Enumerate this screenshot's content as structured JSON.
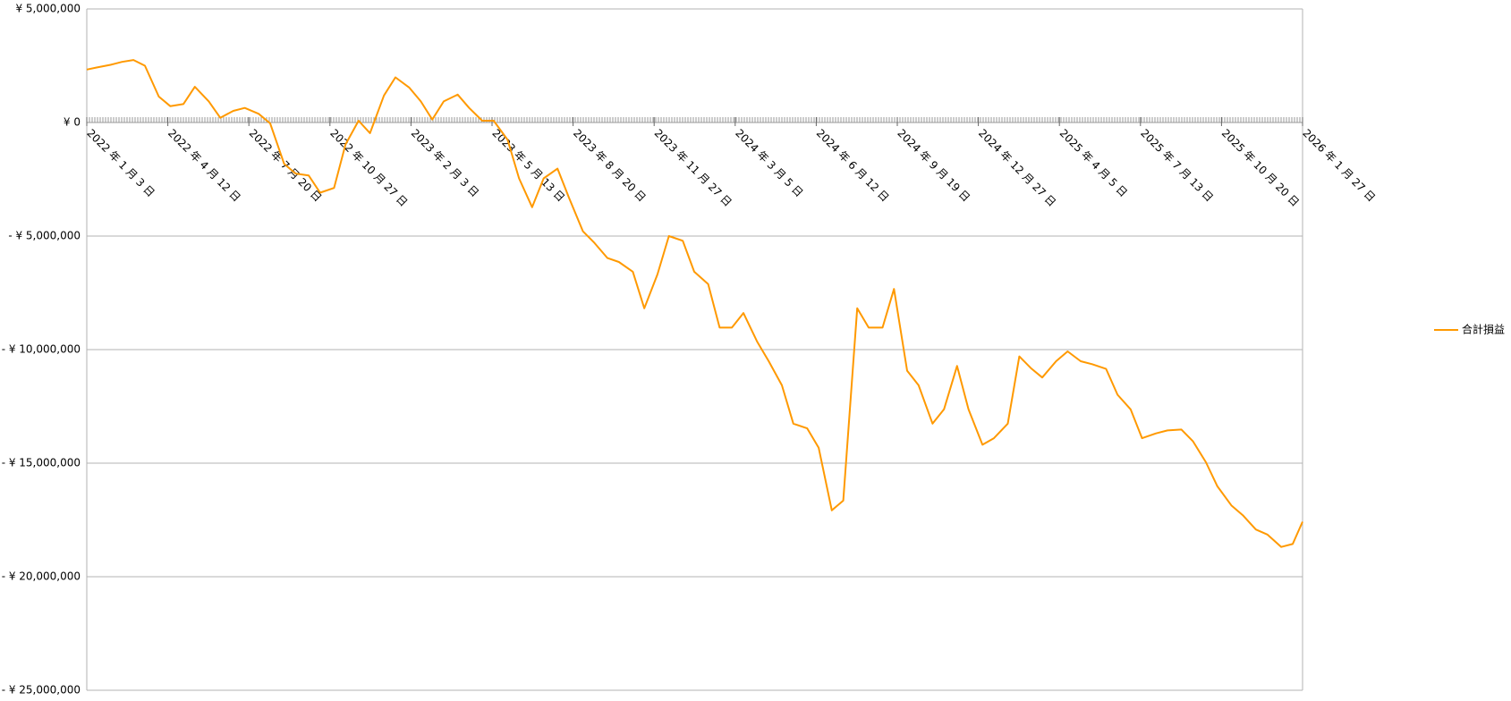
{
  "chart_data": {
    "type": "line",
    "series": [
      {
        "name": "合計損益",
        "color": "#ff9900",
        "x": [
          "2022-01-03",
          "2022-01-15",
          "2022-02-01",
          "2022-02-15",
          "2022-03-01",
          "2022-03-15",
          "2022-04-01",
          "2022-04-15",
          "2022-05-01",
          "2022-05-15",
          "2022-06-01",
          "2022-06-15",
          "2022-07-01",
          "2022-07-15",
          "2022-08-01",
          "2022-08-15",
          "2022-09-01",
          "2022-09-15",
          "2022-10-01",
          "2022-10-15",
          "2022-11-01",
          "2022-11-15",
          "2022-12-01",
          "2022-12-15",
          "2023-01-01",
          "2023-01-15",
          "2023-02-01",
          "2023-02-15",
          "2023-03-01",
          "2023-03-15",
          "2023-04-01",
          "2023-04-15",
          "2023-05-01",
          "2023-05-15",
          "2023-06-01",
          "2023-06-15",
          "2023-07-01",
          "2023-07-15",
          "2023-08-01",
          "2023-08-15",
          "2023-09-01",
          "2023-09-15",
          "2023-10-01",
          "2023-10-15",
          "2023-11-01",
          "2023-11-15",
          "2023-12-01",
          "2023-12-15",
          "2024-01-01",
          "2024-01-15",
          "2024-02-01",
          "2024-02-15",
          "2024-03-01",
          "2024-03-15",
          "2024-04-01",
          "2024-04-15",
          "2024-05-01",
          "2024-05-15",
          "2024-06-01",
          "2024-06-15",
          "2024-07-01",
          "2024-07-15",
          "2024-08-01",
          "2024-08-15",
          "2024-09-01",
          "2024-09-15",
          "2024-10-01",
          "2024-10-15",
          "2024-11-01",
          "2024-11-15",
          "2024-12-01",
          "2024-12-15",
          "2025-01-01",
          "2025-01-15",
          "2025-02-01",
          "2025-02-15",
          "2025-03-01",
          "2025-03-15",
          "2025-04-01",
          "2025-04-15",
          "2025-05-01",
          "2025-05-15",
          "2025-06-01",
          "2025-06-15",
          "2025-07-01",
          "2025-07-15",
          "2025-08-01",
          "2025-08-15",
          "2025-09-01",
          "2025-09-15",
          "2025-10-01",
          "2025-10-15",
          "2025-11-01",
          "2025-11-15",
          "2025-12-01",
          "2025-12-15",
          "2026-01-01",
          "2026-01-15",
          "2026-01-27"
        ],
        "values": [
          2330000,
          2420000,
          2540000,
          2670000,
          2750000,
          2500000,
          1140000,
          720000,
          810000,
          1570000,
          930000,
          210000,
          510000,
          640000,
          380000,
          -40000,
          -1820000,
          -2250000,
          -2330000,
          -3090000,
          -2880000,
          -970000,
          80000,
          -470000,
          1190000,
          1990000,
          1530000,
          930000,
          130000,
          930000,
          1230000,
          640000,
          80000,
          80000,
          -760000,
          -2460000,
          -3730000,
          -2460000,
          -2030000,
          -3310000,
          -4790000,
          -5300000,
          -5970000,
          -6140000,
          -6570000,
          -8180000,
          -6690000,
          -5000000,
          -5210000,
          -6570000,
          -7120000,
          -9030000,
          -9030000,
          -8390000,
          -9660000,
          -10510000,
          -11570000,
          -13260000,
          -13470000,
          -14320000,
          -17080000,
          -16650000,
          -8180000,
          -9030000,
          -9030000,
          -7330000,
          -10930000,
          -11570000,
          -13260000,
          -12630000,
          -10720000,
          -12630000,
          -14190000,
          -13900000,
          -13260000,
          -10300000,
          -10810000,
          -11230000,
          -10510000,
          -10080000,
          -10510000,
          -10640000,
          -10850000,
          -11990000,
          -12630000,
          -13900000,
          -13690000,
          -13560000,
          -13520000,
          -14030000,
          -14960000,
          -16020000,
          -16860000,
          -17290000,
          -17920000,
          -18140000,
          -18690000,
          -18560000,
          -17580000
        ]
      }
    ],
    "xlim": [
      "2022-01-03",
      "2026-01-27"
    ],
    "xticks": [
      {
        "value": "2022-01-03",
        "label": "2022 年 1 月 3 日"
      },
      {
        "value": "2022-04-12",
        "label": "2022 年 4 月 12 日"
      },
      {
        "value": "2022-07-20",
        "label": "2022 年 7 月 20 日"
      },
      {
        "value": "2022-10-27",
        "label": "2022 年 10 月 27 日"
      },
      {
        "value": "2023-02-03",
        "label": "2023 年 2 月 3 日"
      },
      {
        "value": "2023-05-13",
        "label": "2023 年 5 月 13 日"
      },
      {
        "value": "2023-08-20",
        "label": "2023 年 8 月 20 日"
      },
      {
        "value": "2023-11-27",
        "label": "2023 年 11 月 27 日"
      },
      {
        "value": "2024-03-05",
        "label": "2024 年 3 月 5 日"
      },
      {
        "value": "2024-06-12",
        "label": "2024 年 6 月 12 日"
      },
      {
        "value": "2024-09-19",
        "label": "2024 年 9 月 19 日"
      },
      {
        "value": "2024-12-27",
        "label": "2024 年 12 月 27 日"
      },
      {
        "value": "2025-04-05",
        "label": "2025 年 4 月 5 日"
      },
      {
        "value": "2025-07-13",
        "label": "2025 年 7 月 13 日"
      },
      {
        "value": "2025-10-20",
        "label": "2025 年 10 月 20 日"
      },
      {
        "value": "2026-01-27",
        "label": "2026 年 1 月 27 日"
      }
    ],
    "ylim": [
      -25000000,
      5000000
    ],
    "yticks": [
      {
        "value": 5000000,
        "label": "¥ 5,000,000"
      },
      {
        "value": 0,
        "label": "¥ 0"
      },
      {
        "value": -5000000,
        "label": "- ¥ 5,000,000"
      },
      {
        "value": -10000000,
        "label": "- ¥ 10,000,000"
      },
      {
        "value": -15000000,
        "label": "- ¥ 15,000,000"
      },
      {
        "value": -20000000,
        "label": "- ¥ 20,000,000"
      },
      {
        "value": -25000000,
        "label": "- ¥ 25,000,000"
      }
    ],
    "negative_tick_color": "#ff0000",
    "grid": true,
    "legend": "right"
  }
}
